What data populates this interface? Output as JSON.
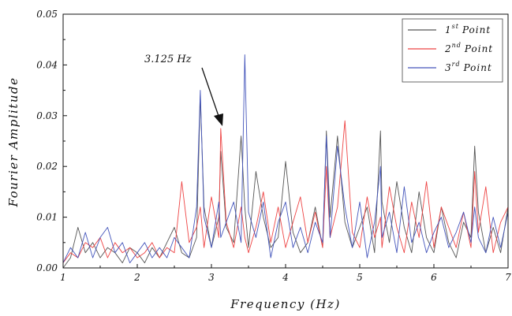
{
  "chart_data": {
    "type": "line",
    "xlabel": "Frequency (Hz)",
    "ylabel": "Fourier Amplitude",
    "xlim": [
      1,
      7
    ],
    "ylim": [
      0,
      0.05
    ],
    "x_ticks": [
      "1",
      "2",
      "3",
      "4",
      "5",
      "6",
      "7"
    ],
    "y_ticks": [
      "0.00",
      "0.01",
      "0.02",
      "0.03",
      "0.04",
      "0.05"
    ],
    "grid": false,
    "legend_position": "top-right",
    "annotation": {
      "text": "3.125 Hz",
      "x": 3.125,
      "y": 0.0275
    },
    "x": [
      1.0,
      1.1,
      1.2,
      1.3,
      1.4,
      1.5,
      1.6,
      1.7,
      1.8,
      1.9,
      2.0,
      2.1,
      2.2,
      2.3,
      2.4,
      2.5,
      2.6,
      2.7,
      2.8,
      2.85,
      2.9,
      3.0,
      3.1,
      3.125,
      3.2,
      3.3,
      3.4,
      3.45,
      3.5,
      3.6,
      3.7,
      3.8,
      3.9,
      4.0,
      4.1,
      4.2,
      4.3,
      4.4,
      4.5,
      4.55,
      4.6,
      4.7,
      4.8,
      4.9,
      5.0,
      5.1,
      5.2,
      5.28,
      5.3,
      5.4,
      5.5,
      5.6,
      5.7,
      5.8,
      5.9,
      6.0,
      6.1,
      6.2,
      6.3,
      6.4,
      6.5,
      6.55,
      6.6,
      6.7,
      6.8,
      6.9,
      7.0
    ],
    "series": [
      {
        "name": "1st Point",
        "superscript": "st",
        "color": "#555555",
        "values": [
          0.0,
          0.002,
          0.008,
          0.003,
          0.005,
          0.002,
          0.004,
          0.003,
          0.001,
          0.004,
          0.003,
          0.001,
          0.004,
          0.002,
          0.005,
          0.008,
          0.003,
          0.002,
          0.006,
          0.034,
          0.012,
          0.004,
          0.01,
          0.023,
          0.008,
          0.005,
          0.026,
          0.012,
          0.004,
          0.019,
          0.01,
          0.004,
          0.006,
          0.021,
          0.007,
          0.003,
          0.005,
          0.012,
          0.004,
          0.027,
          0.01,
          0.026,
          0.009,
          0.004,
          0.008,
          0.012,
          0.003,
          0.027,
          0.013,
          0.005,
          0.017,
          0.008,
          0.003,
          0.015,
          0.006,
          0.003,
          0.012,
          0.005,
          0.002,
          0.009,
          0.006,
          0.024,
          0.011,
          0.003,
          0.008,
          0.003,
          0.012
        ]
      },
      {
        "name": "2nd Point",
        "superscript": "nd",
        "color": "#ee4444",
        "values": [
          0.001,
          0.003,
          0.002,
          0.005,
          0.004,
          0.006,
          0.002,
          0.005,
          0.003,
          0.004,
          0.002,
          0.003,
          0.005,
          0.002,
          0.004,
          0.003,
          0.017,
          0.005,
          0.008,
          0.012,
          0.004,
          0.014,
          0.006,
          0.0275,
          0.009,
          0.004,
          0.012,
          0.006,
          0.003,
          0.008,
          0.015,
          0.005,
          0.012,
          0.004,
          0.009,
          0.014,
          0.005,
          0.011,
          0.004,
          0.02,
          0.006,
          0.012,
          0.029,
          0.007,
          0.004,
          0.014,
          0.006,
          0.01,
          0.004,
          0.016,
          0.008,
          0.003,
          0.013,
          0.006,
          0.017,
          0.004,
          0.012,
          0.008,
          0.004,
          0.011,
          0.004,
          0.019,
          0.007,
          0.016,
          0.003,
          0.009,
          0.012
        ]
      },
      {
        "name": "3rd Point",
        "superscript": "rd",
        "color": "#4455bb",
        "values": [
          0.001,
          0.004,
          0.002,
          0.007,
          0.002,
          0.006,
          0.008,
          0.003,
          0.005,
          0.001,
          0.003,
          0.005,
          0.002,
          0.004,
          0.002,
          0.006,
          0.004,
          0.002,
          0.012,
          0.035,
          0.01,
          0.004,
          0.013,
          0.006,
          0.009,
          0.013,
          0.005,
          0.042,
          0.011,
          0.006,
          0.013,
          0.002,
          0.009,
          0.013,
          0.004,
          0.008,
          0.003,
          0.009,
          0.005,
          0.026,
          0.006,
          0.024,
          0.012,
          0.004,
          0.013,
          0.002,
          0.009,
          0.02,
          0.006,
          0.011,
          0.003,
          0.016,
          0.005,
          0.009,
          0.003,
          0.007,
          0.01,
          0.004,
          0.007,
          0.011,
          0.005,
          0.012,
          0.006,
          0.003,
          0.01,
          0.004,
          0.011
        ]
      }
    ]
  }
}
